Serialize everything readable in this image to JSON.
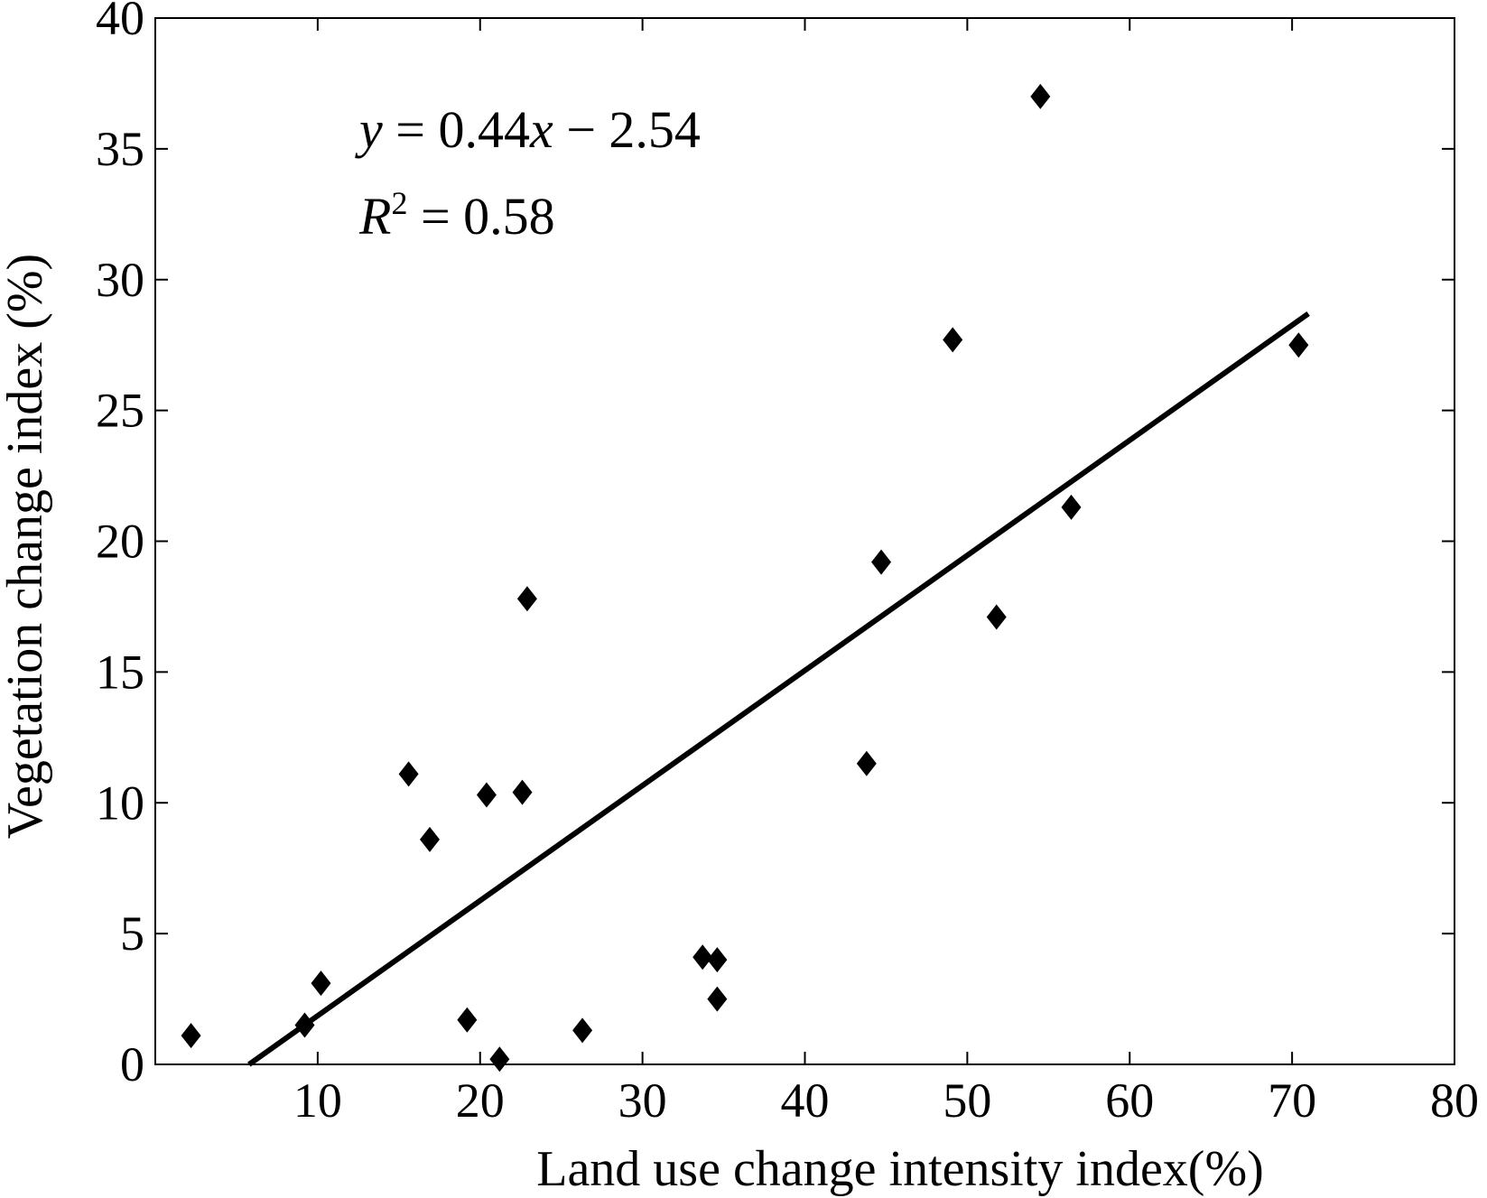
{
  "chart_data": {
    "type": "scatter",
    "xlabel": "Land use change intensity index(%)",
    "ylabel": "Vegetation change index (%)",
    "xlim": [
      0,
      80
    ],
    "ylim": [
      0,
      40
    ],
    "x_ticks": [
      10,
      20,
      30,
      40,
      50,
      60,
      70,
      80
    ],
    "x_tick_labels": [
      "10",
      "20",
      "30",
      "40",
      "50",
      "60",
      "70",
      "80"
    ],
    "y_ticks": [
      0,
      5,
      10,
      15,
      20,
      25,
      30,
      35,
      40
    ],
    "y_tick_labels": [
      "0",
      "5",
      "10",
      "15",
      "20",
      "25",
      "30",
      "35",
      "40"
    ],
    "grid": false,
    "marker": "diamond",
    "color": "#000000",
    "points": [
      {
        "x": 2.2,
        "y": 1.1
      },
      {
        "x": 9.2,
        "y": 1.5
      },
      {
        "x": 10.2,
        "y": 3.1
      },
      {
        "x": 15.6,
        "y": 11.1
      },
      {
        "x": 16.9,
        "y": 8.6
      },
      {
        "x": 19.2,
        "y": 1.7
      },
      {
        "x": 20.4,
        "y": 10.3
      },
      {
        "x": 21.2,
        "y": 0.2
      },
      {
        "x": 22.6,
        "y": 10.4
      },
      {
        "x": 22.9,
        "y": 17.8
      },
      {
        "x": 26.3,
        "y": 1.3
      },
      {
        "x": 33.7,
        "y": 4.1
      },
      {
        "x": 34.6,
        "y": 4.0
      },
      {
        "x": 34.6,
        "y": 2.5
      },
      {
        "x": 43.8,
        "y": 11.5
      },
      {
        "x": 44.7,
        "y": 19.2
      },
      {
        "x": 49.1,
        "y": 27.7
      },
      {
        "x": 51.8,
        "y": 17.1
      },
      {
        "x": 54.5,
        "y": 37.0
      },
      {
        "x": 56.4,
        "y": 21.3
      },
      {
        "x": 70.4,
        "y": 27.5
      }
    ],
    "fit_line": {
      "slope": 0.44,
      "intercept": -2.54,
      "x_range": [
        5.77,
        71.0
      ]
    },
    "annotations": {
      "equation": {
        "y_var": "y",
        "equals": " = 0.44",
        "x_var": "x",
        "rest": " − 2.54"
      },
      "r_squared": {
        "r_var": "R",
        "sup": "2",
        "rest": " = 0.58"
      }
    }
  }
}
